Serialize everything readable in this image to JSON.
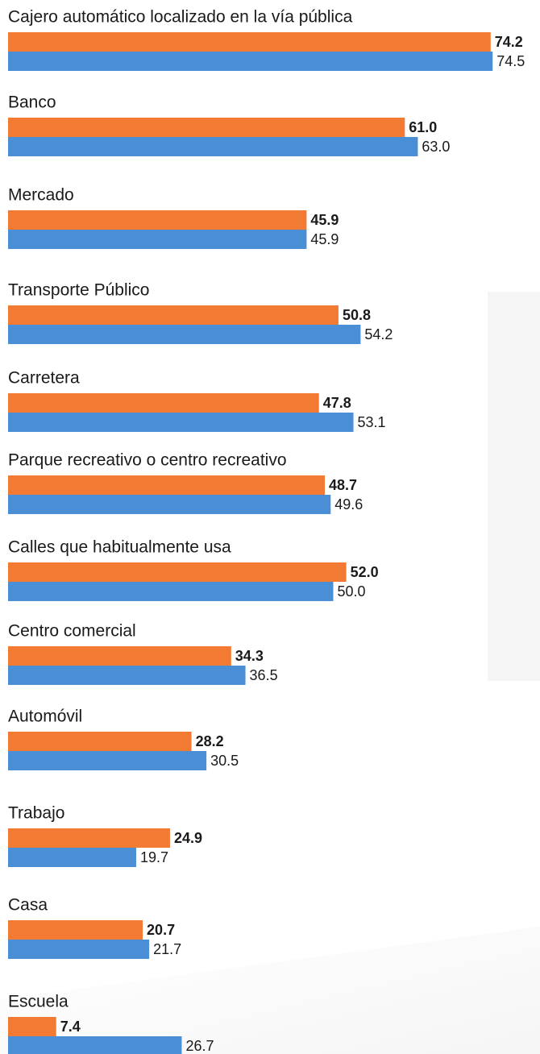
{
  "chart_data": {
    "type": "barh",
    "categories": [
      "Cajero automático localizado en la vía pública",
      "Banco",
      "Mercado",
      "Transporte Público",
      "Carretera",
      "Parque recreativo o centro recreativo",
      "Calles que habitualmente usa",
      "Centro comercial",
      "Automóvil",
      "Trabajo",
      "Casa",
      "Escuela"
    ],
    "series": [
      {
        "color": "#f37a32",
        "values": [
          74.2,
          61.0,
          45.9,
          50.8,
          47.8,
          48.7,
          52.0,
          34.3,
          28.2,
          24.9,
          20.7,
          7.4
        ],
        "value_labels": [
          "74.2",
          "61.0",
          "45.9",
          "50.8",
          "47.8",
          "48.7",
          "52.0",
          "34.3",
          "28.2",
          "24.9",
          "20.7",
          "7.4"
        ]
      },
      {
        "color": "#4a8fd6",
        "values": [
          74.5,
          63.0,
          45.9,
          54.2,
          53.1,
          49.6,
          50.0,
          36.5,
          30.5,
          19.7,
          21.7,
          26.7
        ],
        "value_labels": [
          "74.5",
          "63.0",
          "45.9",
          "54.2",
          "53.1",
          "49.6",
          "50.0",
          "36.5",
          "30.5",
          "19.7",
          "21.7",
          "26.7"
        ]
      }
    ]
  }
}
